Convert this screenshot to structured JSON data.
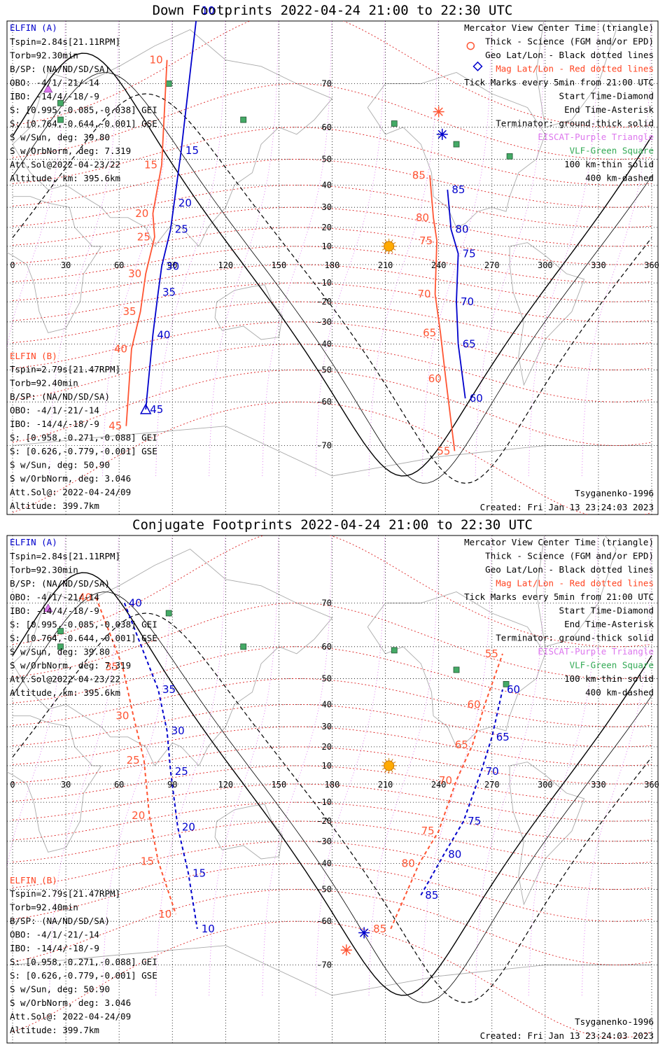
{
  "panels": [
    {
      "title": "Down Footprints 2022-04-24 21:00 to 22:30 UTC",
      "elfin_a": {
        "name": "ELFIN (A)",
        "lines": [
          "Tspin=2.84s[21.11RPM]",
          "Torb=92.30min",
          "B/SP: (NA/ND/SD/SA)",
          "OBO: -4/1/-21/-14",
          "IBO: -14/4/-18/-9",
          "S: [0.995,-0.085,-0.038] GEI",
          "S: [0.764,-0.644,-0.001] GSE",
          "S w/Sun, deg: 39.80",
          "S w/OrbNorm, deg: 7.319",
          "Att.Sol@2022-04-23/22",
          "Altitude, km: 395.6km"
        ]
      },
      "elfin_b": {
        "name": "ELFIN (B)",
        "lines": [
          "Tspin=2.79s[21.47RPM]",
          "Torb=92.40min",
          "B/SP: (NA/ND/SD/SA)",
          "OBO: -4/1/-21/-14",
          "IBO: -14/4/-18/-9",
          "S: [0.958,-0.271,-0.088] GEI",
          "S: [0.626,-0.779,-0.001] GSE",
          "S w/Sun, deg: 50.90",
          "S w/OrbNorm, deg: 3.046",
          "Att.Sol@: 2022-04-24/09",
          "Altitude: 399.7km"
        ]
      },
      "legend": {
        "black": [
          "Mercator View Center Time (triangle)",
          "Thick - Science (FGM and/or EPD)",
          "Geo Lat/Lon - Black dotted lines"
        ],
        "red": "Mag Lat/Lon - Red dotted lines",
        "black2": [
          "Tick Marks every 5min from 21:00 UTC",
          "Start Time-Diamond",
          "End Time-Asterisk",
          "Terminator: ground-thick solid"
        ],
        "violet": "EISCAT-Purple Triangle",
        "green": "VLF-Green Square",
        "black3": [
          "100 km-thin solid",
          "400 km-dashed"
        ]
      },
      "footer_left": "",
      "footer_right_model": "Tsyganenko-1996",
      "footer_right_created": "Created: Fri Jan 13 23:24:03 2023",
      "ticks_a": [
        {
          "t": "10",
          "lon": 104,
          "lat": 80
        },
        {
          "t": "15",
          "lon": 95,
          "lat": 53
        },
        {
          "t": "20",
          "lon": 91,
          "lat": 32
        },
        {
          "t": "25",
          "lon": 89,
          "lat": 19
        },
        {
          "t": "30",
          "lon": 84,
          "lat": -1
        },
        {
          "t": "35",
          "lon": 82,
          "lat": -15
        },
        {
          "t": "40",
          "lon": 79,
          "lat": -36
        },
        {
          "t": "45",
          "lon": 75,
          "lat": -62
        },
        {
          "t": "85",
          "lon": 245,
          "lat": 38
        },
        {
          "t": "80",
          "lon": 247,
          "lat": 19
        },
        {
          "t": "75",
          "lon": 251,
          "lat": 6
        },
        {
          "t": "70",
          "lon": 250,
          "lat": -20
        },
        {
          "t": "65",
          "lon": 251,
          "lat": -40
        },
        {
          "t": "60",
          "lon": 255,
          "lat": -59
        }
      ],
      "ticks_b": [
        {
          "t": "10",
          "lon": 87,
          "lat": 74
        },
        {
          "t": "15",
          "lon": 84,
          "lat": 48
        },
        {
          "t": "20",
          "lon": 79,
          "lat": 27
        },
        {
          "t": "25",
          "lon": 80,
          "lat": 15
        },
        {
          "t": "30",
          "lon": 75,
          "lat": -5
        },
        {
          "t": "35",
          "lon": 72,
          "lat": -25
        },
        {
          "t": "40",
          "lon": 67,
          "lat": -42
        },
        {
          "t": "45",
          "lon": 64,
          "lat": -66
        },
        {
          "t": "85",
          "lon": 235,
          "lat": 44
        },
        {
          "t": "80",
          "lon": 237,
          "lat": 25
        },
        {
          "t": "75",
          "lon": 239,
          "lat": 13
        },
        {
          "t": "70",
          "lon": 238,
          "lat": -16
        },
        {
          "t": "65",
          "lon": 241,
          "lat": -35
        },
        {
          "t": "60",
          "lon": 244,
          "lat": -53
        },
        {
          "t": "55",
          "lon": 249,
          "lat": -71
        }
      ]
    },
    {
      "title": "Conjugate Footprints 2022-04-24 21:00 to 22:30 UTC",
      "elfin_a": {
        "name": "ELFIN (A)",
        "lines": [
          "Tspin=2.84s[21.11RPM]",
          "Torb=92.30min",
          "B/SP: (NA/ND/SD/SA)",
          "OBO: -4/1/-21/-14",
          "IBO: -14/4/-18/-9",
          "S: [0.995,-0.085,-0.038] GEI",
          "S: [0.764,-0.644,-0.001] GSE",
          "S w/Sun, deg: 39.80",
          "S w/OrbNorm, deg: 7.319",
          "Att.Sol@2022-04-23/22",
          "Altitude, km: 395.6km"
        ]
      },
      "elfin_b": {
        "name": "ELFIN (B)",
        "lines": [
          "Tspin=2.79s[21.47RPM]",
          "Torb=92.40min",
          "B/SP: (NA/ND/SD/SA)",
          "OBO: -4/1/-21/-14",
          "IBO: -14/4/-18/-9",
          "S: [0.958,-0.271,-0.088] GEI",
          "S: [0.626,-0.779,-0.001] GSE",
          "S w/Sun, deg: 50.90",
          "S w/OrbNorm, deg: 3.046",
          "Att.Sol@: 2022-04-24/09",
          "Altitude: 399.7km"
        ]
      },
      "legend": {
        "black": [
          "Mercator View Center Time (triangle)",
          "Thick - Science (FGM and/or EPD)",
          "Geo Lat/Lon - Black dotted lines"
        ],
        "red": "Mag Lat/Lon - Red dotted lines",
        "black2": [
          "Tick Marks every 5min from 21:00 UTC",
          "Start Time-Diamond",
          "End Time-Asterisk",
          "Terminator: ground-thick solid"
        ],
        "violet": "EISCAT-Purple Triangle",
        "green": "VLF-Green Square",
        "black3": [
          "100 km-thin solid",
          "400 km-dashed"
        ]
      },
      "footer_right_model": "Tsyganenko-1996",
      "footer_right_created": "Created: Fri Jan 13 23:24:03 2023",
      "ticks_a": [
        {
          "t": "40",
          "lon": 63,
          "lat": 70
        },
        {
          "t": "35",
          "lon": 82,
          "lat": 46
        },
        {
          "t": "30",
          "lon": 87,
          "lat": 28
        },
        {
          "t": "25",
          "lon": 89,
          "lat": 7
        },
        {
          "t": "20",
          "lon": 93,
          "lat": -23
        },
        {
          "t": "15",
          "lon": 99,
          "lat": -44
        },
        {
          "t": "10",
          "lon": 104,
          "lat": -62
        },
        {
          "t": "85",
          "lon": 230,
          "lat": -52
        },
        {
          "t": "80",
          "lon": 243,
          "lat": -36
        },
        {
          "t": "75",
          "lon": 254,
          "lat": -20
        },
        {
          "t": "70",
          "lon": 264,
          "lat": 7
        },
        {
          "t": "65",
          "lon": 270,
          "lat": 25
        },
        {
          "t": "60",
          "lon": 276,
          "lat": 46
        }
      ],
      "ticks_b": [
        {
          "t": "40",
          "lon": 47,
          "lat": 71
        },
        {
          "t": "35",
          "lon": 62,
          "lat": 54
        },
        {
          "t": "30",
          "lon": 68,
          "lat": 35
        },
        {
          "t": "25",
          "lon": 74,
          "lat": 13
        },
        {
          "t": "20",
          "lon": 77,
          "lat": -17
        },
        {
          "t": "15",
          "lon": 82,
          "lat": -39
        },
        {
          "t": "10",
          "lon": 92,
          "lat": -58
        },
        {
          "t": "85",
          "lon": 213,
          "lat": -62
        },
        {
          "t": "80",
          "lon": 229,
          "lat": -40
        },
        {
          "t": "75",
          "lon": 240,
          "lat": -25
        },
        {
          "t": "70",
          "lon": 250,
          "lat": 2
        },
        {
          "t": "65",
          "lon": 259,
          "lat": 21
        },
        {
          "t": "60",
          "lon": 266,
          "lat": 40
        },
        {
          "t": "55",
          "lon": 276,
          "lat": 58
        }
      ]
    }
  ],
  "lon_labels": [
    "0",
    "30",
    "60",
    "90",
    "120",
    "150",
    "180",
    "210",
    "240",
    "270",
    "300",
    "330",
    "360"
  ],
  "lat_labels": [
    "70",
    "60",
    "50",
    "40",
    "30",
    "20",
    "10",
    "0",
    "-10",
    "-20",
    "-30",
    "-40",
    "-50",
    "-60",
    "-70"
  ],
  "colors": {
    "elfin_a": "#0000cc",
    "elfin_b": "#ff5533",
    "sun": "#ffaa00",
    "vlf": "#44aa66",
    "eiscat": "#dd77ee",
    "mag_grid": "#dd2222",
    "geo_grid": "#000000"
  },
  "markers": {
    "sun_icon": "sun-icon",
    "diamond": "start-diamond-icon",
    "asterisk": "end-asterisk-icon",
    "triangle": "center-triangle-icon"
  }
}
